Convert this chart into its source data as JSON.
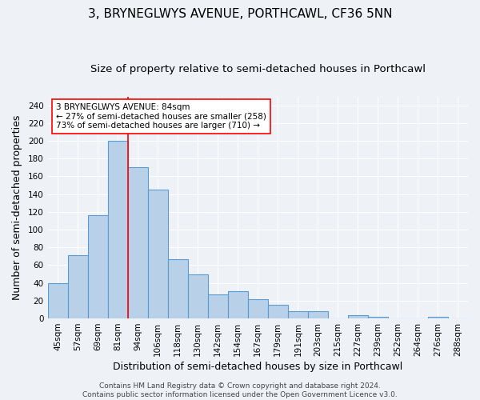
{
  "title": "3, BRYNEGLWYS AVENUE, PORTHCAWL, CF36 5NN",
  "subtitle": "Size of property relative to semi-detached houses in Porthcawl",
  "xlabel": "Distribution of semi-detached houses by size in Porthcawl",
  "ylabel": "Number of semi-detached properties",
  "categories": [
    "45sqm",
    "57sqm",
    "69sqm",
    "81sqm",
    "94sqm",
    "106sqm",
    "118sqm",
    "130sqm",
    "142sqm",
    "154sqm",
    "167sqm",
    "179sqm",
    "191sqm",
    "203sqm",
    "215sqm",
    "227sqm",
    "239sqm",
    "252sqm",
    "264sqm",
    "276sqm",
    "288sqm"
  ],
  "values": [
    40,
    71,
    116,
    200,
    170,
    145,
    67,
    50,
    27,
    31,
    22,
    15,
    8,
    8,
    0,
    4,
    2,
    0,
    0,
    2,
    0
  ],
  "bar_color": "#b8d0e8",
  "bar_edge_color": "#5b9bd5",
  "red_line_index": 3,
  "annotation_text": "3 BRYNEGLWYS AVENUE: 84sqm\n← 27% of semi-detached houses are smaller (258)\n73% of semi-detached houses are larger (710) →",
  "ylim": [
    0,
    250
  ],
  "yticks": [
    0,
    20,
    40,
    60,
    80,
    100,
    120,
    140,
    160,
    180,
    200,
    220,
    240
  ],
  "footer": "Contains HM Land Registry data © Crown copyright and database right 2024.\nContains public sector information licensed under the Open Government Licence v3.0.",
  "background_color": "#eef2f7",
  "grid_color": "#ffffff",
  "title_fontsize": 11,
  "subtitle_fontsize": 9.5,
  "axis_label_fontsize": 9,
  "tick_fontsize": 7.5,
  "footer_fontsize": 6.5,
  "annotation_fontsize": 7.5
}
